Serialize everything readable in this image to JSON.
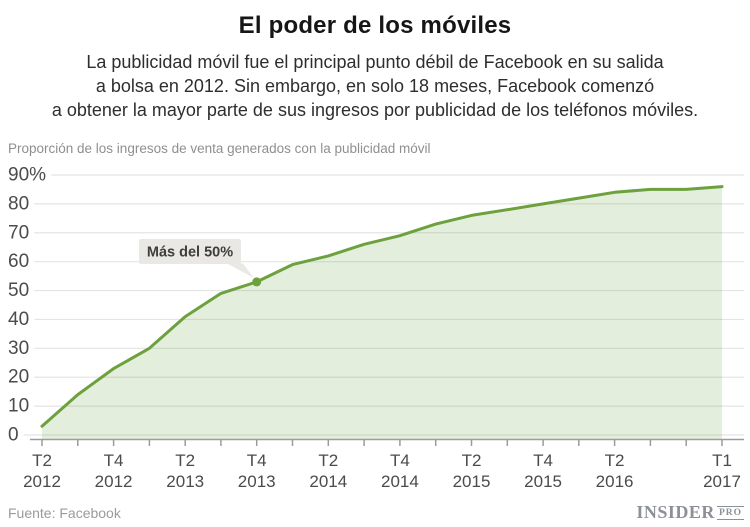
{
  "header": {
    "title": "El poder de los móviles",
    "subtitle_lines": [
      "La publicidad móvil fue el principal punto débil de Facebook en su salida",
      "a bolsa en 2012. Sin embargo, en solo 18 meses, Facebook comenzó",
      "a obtener la mayor parte de sus ingresos por publicidad de los teléfonos móviles."
    ]
  },
  "chart": {
    "style": {
      "line": "#6ca13d",
      "fill_opacity": 0.18,
      "grid": "#e4e4e4",
      "axis": "#9b9b9b",
      "tick_label": "#4b4b4b",
      "bubble_bg": "#e9e8e4",
      "bubble_text": "#3e3e3e"
    }
  },
  "chart_data": {
    "type": "area",
    "title": "El poder de los móviles",
    "ylabel": "Proporción de los ingresos de venta generados con la publicidad móvil",
    "ylim": [
      0,
      90
    ],
    "grid": true,
    "legend": false,
    "x": [
      "T2 2012",
      "T3 2012",
      "T4 2012",
      "T1 2013",
      "T2 2013",
      "T3 2013",
      "T4 2013",
      "T1 2014",
      "T2 2014",
      "T3 2014",
      "T4 2014",
      "T1 2015",
      "T2 2015",
      "T3 2015",
      "T4 2015",
      "T1 2016",
      "T2 2016",
      "T3 2016",
      "T4 2016",
      "T1 2017"
    ],
    "values": [
      3,
      14,
      23,
      30,
      41,
      49,
      53,
      59,
      62,
      66,
      69,
      73,
      76,
      78,
      80,
      82,
      84,
      85,
      85,
      86
    ],
    "yticks": [
      {
        "value": 90,
        "label": "90%"
      },
      {
        "value": 80,
        "label": "80"
      },
      {
        "value": 70,
        "label": "70"
      },
      {
        "value": 60,
        "label": "60"
      },
      {
        "value": 50,
        "label": "50"
      },
      {
        "value": 40,
        "label": "40"
      },
      {
        "value": 30,
        "label": "30"
      },
      {
        "value": 20,
        "label": "20"
      },
      {
        "value": 10,
        "label": "10"
      },
      {
        "value": 0,
        "label": "0"
      }
    ],
    "xtick_labels": [
      {
        "index": 0,
        "lines": [
          "T2",
          "2012"
        ]
      },
      {
        "index": 2,
        "lines": [
          "T4",
          "2012"
        ]
      },
      {
        "index": 4,
        "lines": [
          "T2",
          "2013"
        ]
      },
      {
        "index": 6,
        "lines": [
          "T4",
          "2013"
        ]
      },
      {
        "index": 8,
        "lines": [
          "T2",
          "2014"
        ]
      },
      {
        "index": 10,
        "lines": [
          "T4",
          "2014"
        ]
      },
      {
        "index": 12,
        "lines": [
          "T2",
          "2015"
        ]
      },
      {
        "index": 14,
        "lines": [
          "T4",
          "2015"
        ]
      },
      {
        "index": 16,
        "lines": [
          "T2",
          "2016"
        ]
      },
      {
        "index": 19,
        "lines": [
          "T1",
          "2017"
        ]
      }
    ],
    "annotation": {
      "label": "Más del 50%",
      "point_index": 6,
      "point_label": "T4 2013",
      "point_value": 53
    }
  },
  "footer": {
    "source": "Fuente: Facebook",
    "logo_main": "INSIDER",
    "logo_suffix": "PRO"
  }
}
